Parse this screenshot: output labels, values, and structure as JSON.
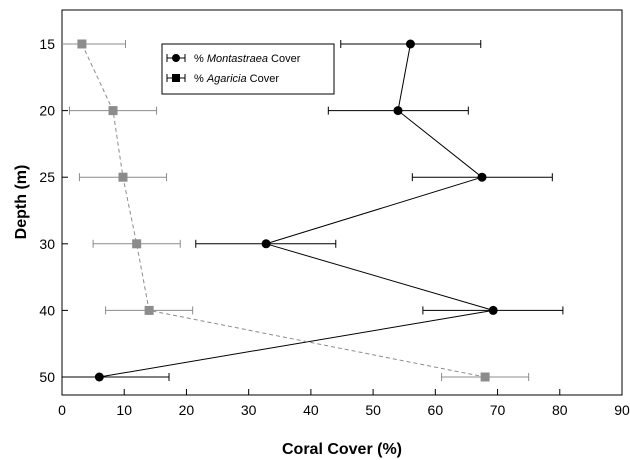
{
  "chart_data": {
    "type": "scatter",
    "xlabel": "Coral Cover (%)",
    "ylabel": "Depth (m)",
    "xlim": [
      0,
      90
    ],
    "x_ticks": [
      0,
      10,
      20,
      30,
      40,
      50,
      60,
      70,
      80,
      90
    ],
    "y_ticks": [
      15,
      20,
      25,
      30,
      40,
      50
    ],
    "y_axis_inverted": true,
    "grid": false,
    "legend_position": "top-left-inside",
    "series": [
      {
        "name_prefix": "% ",
        "name_italic": "Montastraea",
        "name_suffix": " Cover",
        "color": "#000000",
        "marker": "circle",
        "line_style": "solid",
        "points": [
          {
            "depth": 15,
            "cover": 56.0,
            "err_low": 44.8,
            "err_high": 67.3
          },
          {
            "depth": 20,
            "cover": 54.0,
            "err_low": 42.8,
            "err_high": 65.3
          },
          {
            "depth": 25,
            "cover": 67.5,
            "err_low": 56.3,
            "err_high": 78.8
          },
          {
            "depth": 30,
            "cover": 32.8,
            "err_low": 21.5,
            "err_high": 44.0
          },
          {
            "depth": 40,
            "cover": 69.3,
            "err_low": 58.0,
            "err_high": 80.5
          },
          {
            "depth": 50,
            "cover": 6.0,
            "err_low": -5.2,
            "err_high": 17.2
          }
        ]
      },
      {
        "name_prefix": "% ",
        "name_italic": "Agaricia",
        "name_suffix": " Cover",
        "color": "#8c8c8c",
        "marker": "square",
        "line_style": "dashed",
        "points": [
          {
            "depth": 15,
            "cover": 3.2,
            "err_low": -3.8,
            "err_high": 10.2
          },
          {
            "depth": 20,
            "cover": 8.2,
            "err_low": 1.2,
            "err_high": 15.2
          },
          {
            "depth": 25,
            "cover": 9.8,
            "err_low": 2.8,
            "err_high": 16.8
          },
          {
            "depth": 30,
            "cover": 12.0,
            "err_low": 5.0,
            "err_high": 19.0
          },
          {
            "depth": 40,
            "cover": 14.0,
            "err_low": 7.0,
            "err_high": 21.0
          },
          {
            "depth": 50,
            "cover": 68.0,
            "err_low": 61.0,
            "err_high": 75.0
          }
        ]
      }
    ]
  }
}
